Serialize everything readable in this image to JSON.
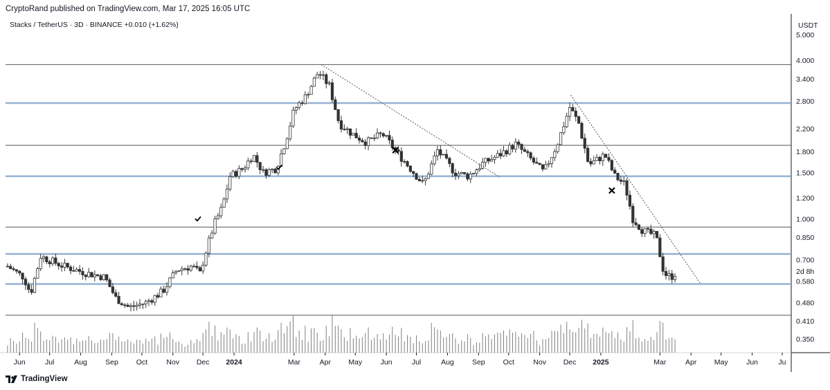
{
  "header": {
    "published_by": "CryptoRand published on TradingView.com, Mar 17, 2025 16:05 UTC",
    "symbol_line": "Stacks / TetherUS · 3D · BINANCE  +0.010 (+1.62%)"
  },
  "footer": {
    "brand": "TradingView"
  },
  "colors": {
    "up": "#ffffff",
    "down": "#333333",
    "wick": "#333333",
    "line_dark": "#555555",
    "line_blue": "#8fb3e0",
    "volume": "#555555"
  },
  "icons": [
    "checkmark-icon",
    "x-mark-icon",
    "tradingview-logo-icon"
  ],
  "chart_data": {
    "type": "candlestick",
    "scale": "log",
    "currency_label": "USDT",
    "countdown_label": "2d 8h",
    "yticks": [
      "5.000",
      "4.000",
      "3.400",
      "2.800",
      "2.200",
      "1.800",
      "1.500",
      "1.200",
      "1.000",
      "0.850",
      "0.700",
      "0.580",
      "0.480",
      "0.410",
      "0.350"
    ],
    "yrange": [
      0.31,
      6.0
    ],
    "xticks": [
      {
        "label": "Jun",
        "t": "2023-06-01",
        "bold": false
      },
      {
        "label": "Jul",
        "t": "2023-07-01",
        "bold": false
      },
      {
        "label": "Aug",
        "t": "2023-08-01",
        "bold": false
      },
      {
        "label": "Sep",
        "t": "2023-09-01",
        "bold": false
      },
      {
        "label": "Oct",
        "t": "2023-10-01",
        "bold": false
      },
      {
        "label": "Nov",
        "t": "2023-11-01",
        "bold": false
      },
      {
        "label": "Dec",
        "t": "2023-12-01",
        "bold": false
      },
      {
        "label": "2024",
        "t": "2024-01-01",
        "bold": true
      },
      {
        "label": "Mar",
        "t": "2024-03-01",
        "bold": false
      },
      {
        "label": "Apr",
        "t": "2024-04-01",
        "bold": false
      },
      {
        "label": "May",
        "t": "2024-05-01",
        "bold": false
      },
      {
        "label": "Jun",
        "t": "2024-06-01",
        "bold": false
      },
      {
        "label": "Jul",
        "t": "2024-07-01",
        "bold": false
      },
      {
        "label": "Aug",
        "t": "2024-08-01",
        "bold": false
      },
      {
        "label": "Sep",
        "t": "2024-09-01",
        "bold": false
      },
      {
        "label": "Oct",
        "t": "2024-10-01",
        "bold": false
      },
      {
        "label": "Nov",
        "t": "2024-11-01",
        "bold": false
      },
      {
        "label": "Dec",
        "t": "2024-12-01",
        "bold": false
      },
      {
        "label": "2025",
        "t": "2025-01-01",
        "bold": true
      },
      {
        "label": "Mar",
        "t": "2025-03-01",
        "bold": false
      },
      {
        "label": "Apr",
        "t": "2025-04-01",
        "bold": false
      },
      {
        "label": "May",
        "t": "2025-05-01",
        "bold": false
      },
      {
        "label": "Jun",
        "t": "2025-06-01",
        "bold": false
      },
      {
        "label": "Ju",
        "t": "2025-07-01",
        "bold": false
      }
    ],
    "horizontal_levels": [
      {
        "price": 3.85,
        "style": "dark"
      },
      {
        "price": 2.75,
        "style": "blue"
      },
      {
        "price": 1.9,
        "style": "dark"
      },
      {
        "price": 1.45,
        "style": "blue"
      },
      {
        "price": 0.93,
        "style": "dark"
      },
      {
        "price": 0.735,
        "style": "blue"
      },
      {
        "price": 0.565,
        "style": "blue"
      },
      {
        "price": 0.43,
        "style": "dark"
      }
    ],
    "trendlines": [
      {
        "from": {
          "t": "2024-03-28",
          "p": 3.85
        },
        "to": {
          "t": "2024-09-22",
          "p": 1.44
        }
      },
      {
        "from": {
          "t": "2024-12-02",
          "p": 2.95
        },
        "to": {
          "t": "2025-04-10",
          "p": 0.57
        }
      }
    ],
    "markers": [
      {
        "type": "check",
        "t": "2023-11-26",
        "p": 1.0
      },
      {
        "type": "check",
        "t": "2024-02-15",
        "p": 1.57
      },
      {
        "type": "x",
        "t": "2024-06-10",
        "p": 1.82
      },
      {
        "type": "x",
        "t": "2025-01-12",
        "p": 1.28
      }
    ],
    "anchors": [
      [
        "2023-05-20",
        0.66
      ],
      [
        "2023-06-05",
        0.6
      ],
      [
        "2023-06-12",
        0.52
      ],
      [
        "2023-06-22",
        0.72
      ],
      [
        "2023-07-15",
        0.66
      ],
      [
        "2023-08-08",
        0.62
      ],
      [
        "2023-08-25",
        0.6
      ],
      [
        "2023-09-05",
        0.5
      ],
      [
        "2023-09-18",
        0.46
      ],
      [
        "2023-10-05",
        0.48
      ],
      [
        "2023-10-22",
        0.53
      ],
      [
        "2023-11-05",
        0.64
      ],
      [
        "2023-11-20",
        0.66
      ],
      [
        "2023-11-28",
        0.62
      ],
      [
        "2023-12-03",
        0.73
      ],
      [
        "2023-12-12",
        0.95
      ],
      [
        "2023-12-20",
        1.1
      ],
      [
        "2023-12-28",
        1.45
      ],
      [
        "2024-01-10",
        1.55
      ],
      [
        "2024-01-20",
        1.75
      ],
      [
        "2024-01-30",
        1.5
      ],
      [
        "2024-02-12",
        1.55
      ],
      [
        "2024-02-22",
        2.0
      ],
      [
        "2024-03-01",
        2.6
      ],
      [
        "2024-03-12",
        2.9
      ],
      [
        "2024-03-25",
        3.6
      ],
      [
        "2024-04-05",
        3.2
      ],
      [
        "2024-04-15",
        2.3
      ],
      [
        "2024-04-28",
        2.1
      ],
      [
        "2024-05-12",
        1.95
      ],
      [
        "2024-05-28",
        2.1
      ],
      [
        "2024-06-12",
        1.78
      ],
      [
        "2024-06-25",
        1.55
      ],
      [
        "2024-07-08",
        1.35
      ],
      [
        "2024-07-22",
        1.82
      ],
      [
        "2024-08-08",
        1.5
      ],
      [
        "2024-08-22",
        1.45
      ],
      [
        "2024-09-05",
        1.62
      ],
      [
        "2024-09-22",
        1.75
      ],
      [
        "2024-10-08",
        1.92
      ],
      [
        "2024-10-22",
        1.7
      ],
      [
        "2024-11-05",
        1.5
      ],
      [
        "2024-11-18",
        1.9
      ],
      [
        "2024-12-01",
        2.65
      ],
      [
        "2024-12-10",
        2.3
      ],
      [
        "2024-12-20",
        1.6
      ],
      [
        "2025-01-05",
        1.75
      ],
      [
        "2025-01-15",
        1.45
      ],
      [
        "2025-01-25",
        1.35
      ],
      [
        "2025-02-02",
        1.0
      ],
      [
        "2025-02-12",
        0.9
      ],
      [
        "2025-02-25",
        0.86
      ],
      [
        "2025-03-05",
        0.62
      ],
      [
        "2025-03-12",
        0.6
      ],
      [
        "2025-03-17",
        0.625
      ]
    ]
  }
}
